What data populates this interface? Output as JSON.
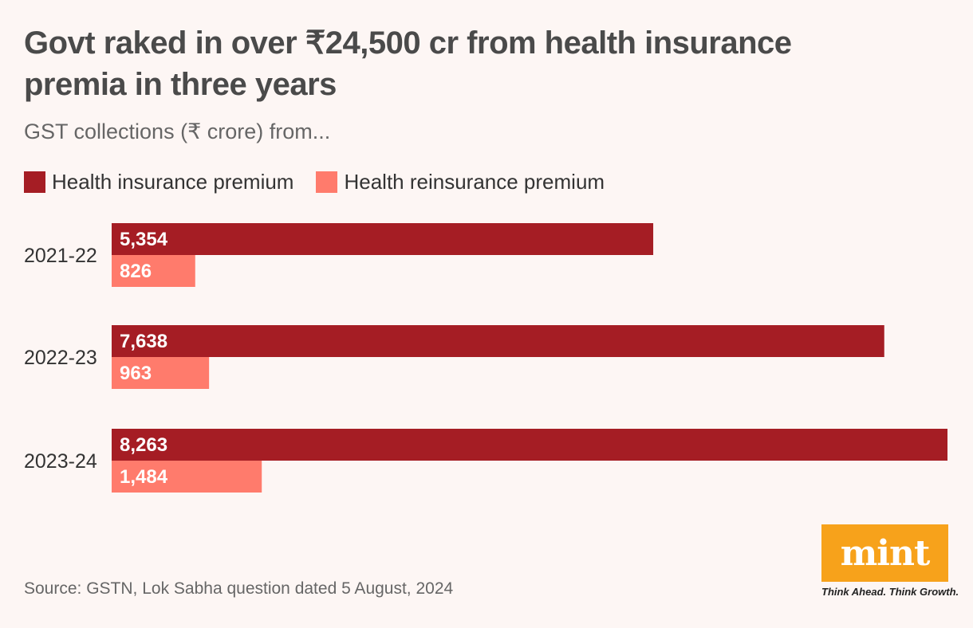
{
  "title": "Govt raked in over ₹24,500 cr from health insurance premia in three years",
  "subtitle": "GST collections (₹ crore) from...",
  "source": "Source: GSTN, Lok Sabha question dated 5 August, 2024",
  "logo": {
    "text": "mint",
    "tagline": "Think Ahead. Think Growth.",
    "color": "#f7a21b"
  },
  "colors": {
    "background": "#fdf6f4",
    "insurance": "#a51d24",
    "reinsurance": "#ff7b6c"
  },
  "chart_data": {
    "type": "bar",
    "orientation": "horizontal",
    "title": "Govt raked in over ₹24,500 cr from health insurance premia in three years",
    "subtitle": "GST collections (₹ crore) from...",
    "xlabel": "",
    "ylabel": "",
    "xlim": [
      0,
      8263
    ],
    "grid": false,
    "legend_position": "top-left",
    "categories": [
      "2021-22",
      "2022-23",
      "2023-24"
    ],
    "series": [
      {
        "name": "Health insurance premium",
        "color": "#a51d24",
        "values": [
          5354,
          7638,
          8263
        ],
        "labels": [
          "5,354",
          "7,638",
          "8,263"
        ]
      },
      {
        "name": "Health reinsurance premium",
        "color": "#ff7b6c",
        "values": [
          826,
          963,
          1484
        ],
        "labels": [
          "826",
          "963",
          "1,484"
        ]
      }
    ]
  }
}
